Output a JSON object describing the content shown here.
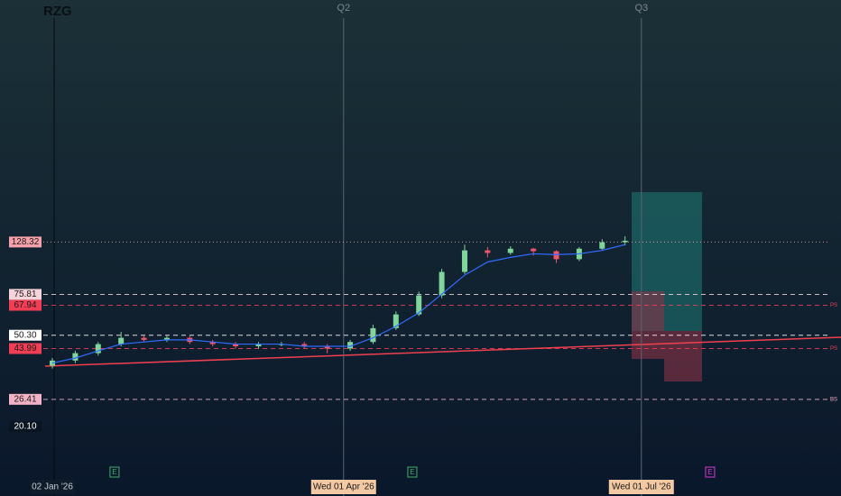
{
  "chart_data": {
    "type": "candlestick",
    "title": "RZG",
    "log_scale": true,
    "xlim": [
      "2025-12-17",
      "2026-08-31"
    ],
    "ylim": [
      10,
      1460
    ],
    "up_color": "#7fd59a",
    "down_color": "#f0566a",
    "x": [
      "2026-01-02",
      "2026-01-09",
      "2026-01-16",
      "2026-01-23",
      "2026-01-30",
      "2026-02-06",
      "2026-02-13",
      "2026-02-20",
      "2026-02-27",
      "2026-03-06",
      "2026-03-13",
      "2026-03-20",
      "2026-03-27",
      "2026-04-03",
      "2026-04-10",
      "2026-04-17",
      "2026-04-24",
      "2026-05-01",
      "2026-05-08",
      "2026-05-15",
      "2026-05-22",
      "2026-05-29",
      "2026-06-05",
      "2026-06-12",
      "2026-06-19",
      "2026-06-26"
    ],
    "open": [
      37,
      39,
      42,
      46,
      49,
      48,
      49,
      47,
      46,
      45,
      46,
      46,
      45,
      44,
      47,
      54,
      62,
      75,
      95,
      118,
      115,
      120,
      117,
      108,
      120,
      128
    ],
    "high": [
      40,
      43,
      47,
      52,
      50,
      50,
      50,
      48,
      47,
      47,
      47,
      47,
      46,
      48,
      56,
      64,
      78,
      98,
      125,
      122,
      123,
      121,
      118,
      122,
      132,
      136
    ],
    "low": [
      36,
      38,
      41,
      45,
      47,
      47,
      46,
      45,
      44,
      44,
      45,
      44,
      42,
      43,
      46,
      53,
      61,
      73,
      93,
      110,
      113,
      112,
      104,
      106,
      118,
      124
    ],
    "close": [
      39,
      42,
      46,
      49,
      48,
      49,
      47,
      46,
      45,
      46,
      46,
      45,
      44,
      47,
      54,
      62,
      75,
      95,
      118,
      115,
      120,
      117,
      108,
      120,
      128,
      130
    ],
    "series": [
      {
        "color": "#2f6bff",
        "values": [
          38,
          40,
          43,
          46,
          47,
          48,
          48,
          47,
          46,
          46,
          46,
          45,
          45,
          45,
          49,
          55,
          63,
          76,
          92,
          105,
          110,
          114,
          113,
          114,
          118,
          125
        ]
      }
    ],
    "levels": [
      {
        "value": 128.32,
        "color": "#f7a1ab",
        "text_color": "#1a1a1a",
        "line": "dotted"
      },
      {
        "value": 75.81,
        "color": "#f5d3da",
        "text_color": "#1a1a1a",
        "line": "dashed"
      },
      {
        "value": 67.94,
        "color": "#f23e55",
        "text_color": "#1a1a1a",
        "line": "dashed",
        "tag": "PS"
      },
      {
        "value": 50.3,
        "label": "50.30",
        "color": "#ffffff",
        "text_color": "#1a1a1a",
        "line": "dashed"
      },
      {
        "value": 43.99,
        "color": "#f23e55",
        "text_color": "#1a1a1a",
        "line": "dashed",
        "tag": "PS"
      },
      {
        "value": 26.41,
        "color": "#f3b3c6",
        "text_color": "#1a1a1a",
        "line": "dashed",
        "tag": "BS"
      },
      {
        "value": 20.1,
        "label": "20.10",
        "color": "#0b1522",
        "text_color": "#ffffff",
        "line": "none"
      }
    ],
    "quarters": [
      {
        "value": "2026-04-01",
        "label": "Q2"
      },
      {
        "value": "2026-07-01",
        "label": "Q3"
      }
    ],
    "xticks": [
      {
        "value": "2026-01-02",
        "label": "02 Jan '26"
      },
      {
        "value": "2026-04-01",
        "label": "Wed 01 Apr '26"
      },
      {
        "value": "2026-07-01",
        "label": "Wed 01 Jul '26"
      }
    ],
    "events": [
      {
        "value": "2026-01-21",
        "label": "E"
      },
      {
        "value": "2026-04-22",
        "label": "E"
      },
      {
        "value": "2026-07-22",
        "label": "E"
      }
    ]
  }
}
